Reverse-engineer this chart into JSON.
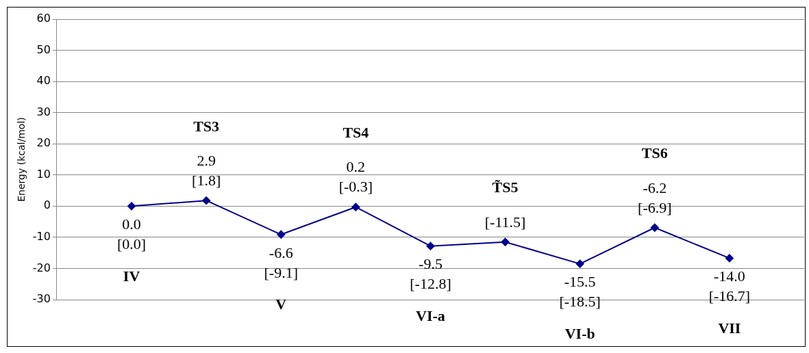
{
  "chart_data": {
    "type": "line",
    "ylabel": "Energy (kcal/mol)",
    "categories": [
      null,
      "IV",
      "TS3",
      "V",
      "TS4",
      "VI-a",
      "T̃S5",
      "VI-b",
      "TS6",
      "VII",
      null
    ],
    "series": [
      {
        "color": "#00008b",
        "values": [
          null,
          0.0,
          1.8,
          -9.1,
          -0.3,
          -12.8,
          -11.5,
          -18.5,
          -6.9,
          -16.7,
          null
        ],
        "value_labels": [
          null,
          "0.0\n[0.0]",
          "2.9\n[1.8]",
          "-6.6\n[-9.1]",
          "0.2\n[-0.3]",
          "-9.5\n[-12.8]",
          "[-11.5]",
          "-15.5\n[-18.5]",
          "-6.2\n[-6.9]",
          "-14.0\n[-16.7]",
          null
        ]
      }
    ],
    "ylim": [
      -30,
      60
    ],
    "yticks": [
      -30,
      -20,
      -10,
      0,
      10,
      20,
      30,
      40,
      50,
      60
    ],
    "grid": "y",
    "legend": false,
    "marker": "diamond",
    "tick_labels": "y"
  }
}
